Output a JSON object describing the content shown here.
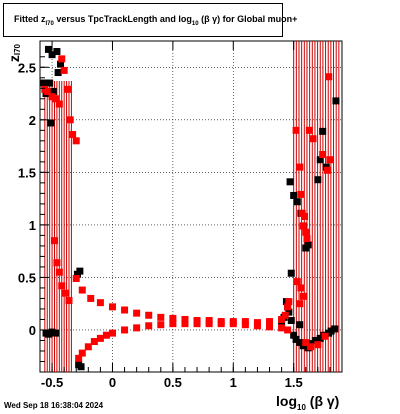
{
  "chart_data": {
    "type": "scatter",
    "title_parts": {
      "prefix": "Fitted  z",
      "sub1": "I70",
      "middle": "  versus TpcTrackLength and log",
      "sub2": "10",
      "suffix": "(β  γ) for Global muon+"
    },
    "ylabel_main": "z",
    "ylabel_sub": "I70",
    "xlabel_main": "log",
    "xlabel_sub": "10",
    "xlabel_suffix": "(β γ)",
    "xlim": [
      -0.6,
      1.9
    ],
    "ylim": [
      -0.4,
      2.75
    ],
    "x_ticks": [
      -0.5,
      0,
      0.5,
      1,
      1.5
    ],
    "x_tick_labels": [
      "-0.5",
      "0",
      "0.5",
      "1",
      "1.5"
    ],
    "y_ticks": [
      0,
      0.5,
      1,
      1.5,
      2,
      2.5
    ],
    "y_tick_labels": [
      "0",
      "0.5",
      "1",
      "1.5",
      "2",
      "2.5"
    ],
    "grid": true,
    "series": [
      {
        "color": "#000000",
        "points": [
          [
            -0.57,
            2.35
          ],
          [
            -0.53,
            2.67
          ],
          [
            -0.5,
            2.62
          ],
          [
            -0.46,
            2.65
          ],
          [
            -0.52,
            2.35
          ],
          [
            -0.49,
            2.27
          ],
          [
            -0.55,
            2.25
          ],
          [
            -0.45,
            2.45
          ],
          [
            -0.43,
            2.53
          ],
          [
            -0.51,
            1.97
          ],
          [
            -0.27,
            0.56
          ],
          [
            -0.29,
            0.53
          ],
          [
            -0.55,
            -0.03
          ],
          [
            -0.53,
            -0.04
          ],
          [
            -0.5,
            -0.02
          ],
          [
            -0.47,
            -0.03
          ],
          [
            -0.28,
            -0.33
          ],
          [
            -0.26,
            -0.35
          ],
          [
            1.47,
            1.41
          ],
          [
            1.5,
            1.28
          ],
          [
            1.53,
            1.22
          ],
          [
            1.56,
            1.11
          ],
          [
            1.58,
            0.99
          ],
          [
            1.6,
            0.78
          ],
          [
            1.62,
            0.81
          ],
          [
            1.74,
            1.89
          ],
          [
            1.72,
            1.62
          ],
          [
            1.77,
            1.55
          ],
          [
            1.7,
            1.43
          ],
          [
            1.85,
            2.18
          ],
          [
            1.48,
            0.54
          ],
          [
            1.44,
            0.27
          ],
          [
            1.45,
            0.22
          ],
          [
            1.46,
            0.17
          ],
          [
            1.42,
            0.12
          ],
          [
            1.4,
            0.08
          ],
          [
            1.5,
            -0.05
          ],
          [
            1.52,
            -0.09
          ],
          [
            1.55,
            -0.12
          ],
          [
            1.58,
            -0.15
          ],
          [
            1.62,
            -0.17
          ],
          [
            1.64,
            -0.13
          ],
          [
            1.68,
            -0.1
          ],
          [
            1.72,
            -0.08
          ],
          [
            1.75,
            -0.05
          ],
          [
            1.79,
            -0.03
          ],
          [
            1.81,
            -0.01
          ],
          [
            1.84,
            0.01
          ],
          [
            1.55,
            0.05
          ],
          [
            1.48,
            0.09
          ]
        ]
      },
      {
        "color": "#ff0000",
        "points": [
          [
            -0.56,
            2.29
          ],
          [
            -0.54,
            2.27
          ],
          [
            -0.5,
            2.22
          ],
          [
            -0.47,
            2.2
          ],
          [
            -0.44,
            2.15
          ],
          [
            -0.42,
            2.58
          ],
          [
            -0.4,
            2.47
          ],
          [
            -0.37,
            2.29
          ],
          [
            -0.35,
            2.0
          ],
          [
            -0.33,
            1.86
          ],
          [
            -0.3,
            1.8
          ],
          [
            -0.48,
            0.85
          ],
          [
            -0.46,
            0.64
          ],
          [
            -0.44,
            0.55
          ],
          [
            -0.42,
            0.42
          ],
          [
            -0.39,
            0.35
          ],
          [
            -0.36,
            0.28
          ],
          [
            -0.3,
            0.49
          ],
          [
            -0.25,
            0.38
          ],
          [
            -0.18,
            0.3
          ],
          [
            -0.1,
            0.26
          ],
          [
            0.0,
            0.22
          ],
          [
            0.1,
            0.19
          ],
          [
            0.2,
            0.16
          ],
          [
            0.3,
            0.14
          ],
          [
            0.4,
            0.12
          ],
          [
            0.5,
            0.11
          ],
          [
            0.6,
            0.1
          ],
          [
            0.7,
            0.09
          ],
          [
            0.8,
            0.09
          ],
          [
            0.9,
            0.08
          ],
          [
            1.0,
            0.08
          ],
          [
            1.1,
            0.08
          ],
          [
            1.2,
            0.07
          ],
          [
            1.3,
            0.08
          ],
          [
            1.4,
            0.1
          ],
          [
            1.43,
            0.14
          ],
          [
            1.45,
            0.22
          ],
          [
            1.46,
            0.27
          ],
          [
            -0.28,
            -0.27
          ],
          [
            -0.25,
            -0.22
          ],
          [
            -0.2,
            -0.16
          ],
          [
            -0.15,
            -0.11
          ],
          [
            -0.1,
            -0.08
          ],
          [
            -0.05,
            -0.05
          ],
          [
            0.0,
            -0.03
          ],
          [
            0.1,
            0.0
          ],
          [
            0.2,
            0.02
          ],
          [
            0.3,
            0.04
          ],
          [
            0.4,
            0.05
          ],
          [
            0.5,
            0.06
          ],
          [
            0.6,
            0.06
          ],
          [
            0.7,
            0.06
          ],
          [
            0.8,
            0.06
          ],
          [
            0.9,
            0.06
          ],
          [
            1.0,
            0.06
          ],
          [
            1.1,
            0.05
          ],
          [
            1.2,
            0.04
          ],
          [
            1.3,
            0.03
          ],
          [
            1.4,
            0.02
          ],
          [
            1.45,
            0.0
          ],
          [
            1.52,
            1.9
          ],
          [
            1.55,
            1.55
          ],
          [
            1.56,
            1.29
          ],
          [
            1.57,
            1.11
          ],
          [
            1.59,
            1.08
          ],
          [
            1.6,
            0.93
          ],
          [
            1.58,
            0.99
          ],
          [
            1.61,
            0.87
          ],
          [
            1.63,
            1.9
          ],
          [
            1.66,
            1.82
          ],
          [
            1.74,
            1.67
          ],
          [
            1.78,
            1.52
          ],
          [
            1.79,
            2.41
          ],
          [
            1.8,
            1.62
          ],
          [
            1.53,
            0.46
          ],
          [
            1.56,
            0.4
          ],
          [
            1.58,
            0.32
          ],
          [
            1.55,
            0.25
          ],
          [
            1.6,
            -0.12
          ],
          [
            1.64,
            -0.16
          ],
          [
            1.7,
            -0.14
          ],
          [
            1.76,
            -0.06
          ]
        ]
      }
    ],
    "errorbars": {
      "color_black": "#000000",
      "color_red": "#ff0000"
    },
    "datestamp": "Wed Sep 18 16:38:04 2024"
  }
}
